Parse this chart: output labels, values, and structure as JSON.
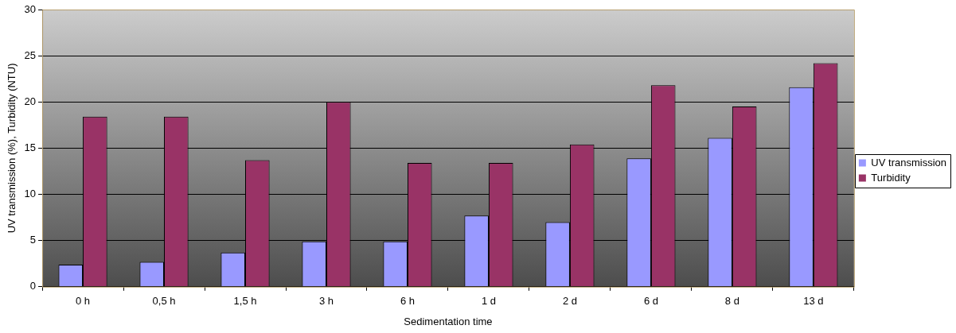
{
  "chart_data": {
    "type": "bar",
    "xlabel": "Sedimentation time",
    "ylabel": "UV transmission (%), Turbidity (NTU)",
    "categories": [
      "0 h",
      "0,5 h",
      "1,5 h",
      "3 h",
      "6 h",
      "1 d",
      "2 d",
      "6 d",
      "8 d",
      "13 d"
    ],
    "series": [
      {
        "name": "UV transmission",
        "color": "#9999ff",
        "values": [
          2.4,
          2.7,
          3.7,
          4.9,
          4.9,
          7.7,
          7.0,
          13.9,
          16.1,
          21.6
        ]
      },
      {
        "name": "Turbidity",
        "color": "#993366",
        "values": [
          18.4,
          18.4,
          13.7,
          20.0,
          13.4,
          13.4,
          15.4,
          21.8,
          19.5,
          24.2
        ]
      }
    ],
    "ylim": [
      0,
      30
    ],
    "yticks": [
      0,
      5,
      10,
      15,
      20,
      25,
      30
    ],
    "grid": "y",
    "legend": "right"
  }
}
